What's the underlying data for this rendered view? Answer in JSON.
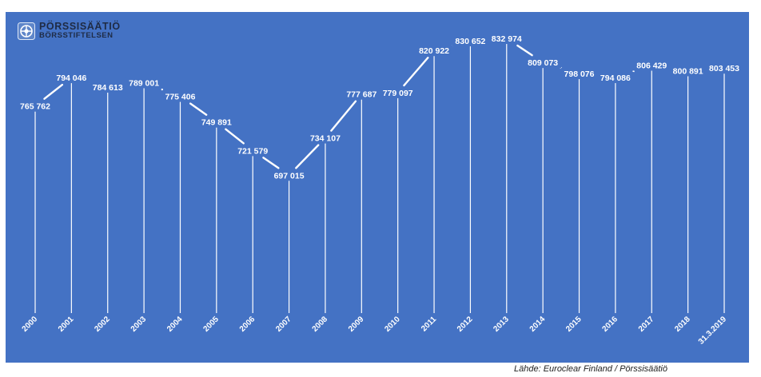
{
  "logo": {
    "icon": "porssisaatio-logo-icon",
    "line1": "PÖRSSISÄÄTIÖ",
    "line2": "BÖRSSTIFTELSEN"
  },
  "source_note": "Lähde: Euroclear Finland / Pörssisäätiö",
  "colors": {
    "background": "#4472c4",
    "line": "#ffffff",
    "text": "#ffffff"
  },
  "chart_data": {
    "type": "line",
    "title": "",
    "xlabel": "",
    "ylabel": "",
    "ylim": [
      560000,
      860000
    ],
    "grid": false,
    "categories": [
      "2000",
      "2001",
      "2002",
      "2003",
      "2004",
      "2005",
      "2006",
      "2007",
      "2008",
      "2009",
      "2010",
      "2011",
      "2012",
      "2013",
      "2014",
      "2015",
      "2016",
      "2017",
      "2018",
      "31.3.2019"
    ],
    "values": [
      765762,
      794046,
      784613,
      789001,
      775406,
      749891,
      721579,
      697015,
      734107,
      777687,
      779097,
      820922,
      830652,
      832974,
      809073,
      798076,
      794086,
      806429,
      800891,
      803453
    ],
    "value_labels": [
      "765 762",
      "794 046",
      "784 613",
      "789 001",
      "775 406",
      "749 891",
      "721 579",
      "697 015",
      "734 107",
      "777 687",
      "779 097",
      "820 922",
      "830 652",
      "832 974",
      "809 073",
      "798 076",
      "794 086",
      "806 429",
      "800 891",
      "803 453"
    ]
  }
}
